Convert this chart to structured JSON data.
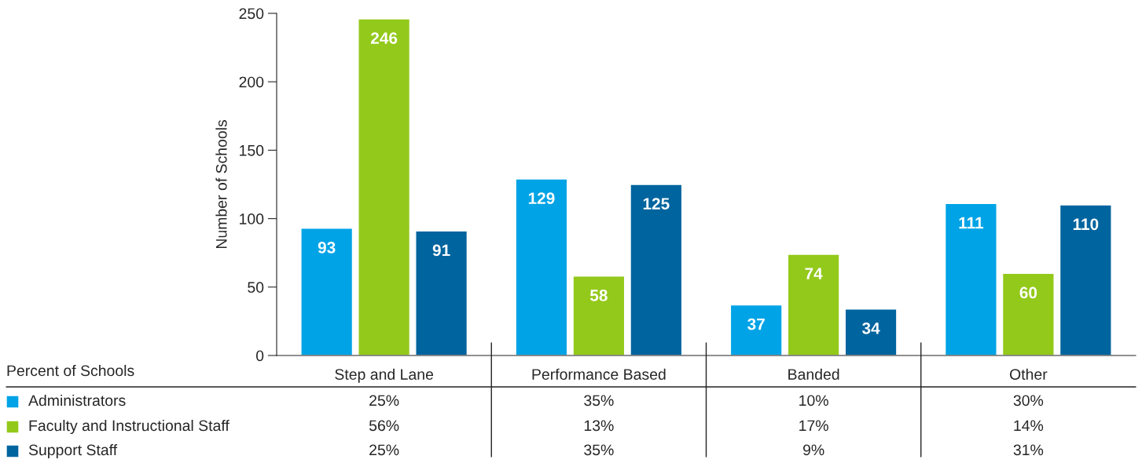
{
  "chart_data": {
    "type": "bar",
    "ylabel": "Number of Schools",
    "categories": [
      "Step and Lane",
      "Performance Based",
      "Banded",
      "Other"
    ],
    "series": [
      {
        "name": "Administrators",
        "color": "#00a3e6",
        "values": [
          93,
          129,
          37,
          111
        ]
      },
      {
        "name": "Faculty and Instructional Staff",
        "color": "#93c91a",
        "values": [
          246,
          58,
          74,
          60
        ]
      },
      {
        "name": "Support Staff",
        "color": "#00649e",
        "values": [
          91,
          125,
          34,
          110
        ]
      }
    ],
    "ylim": [
      0,
      250
    ],
    "yticks": [
      0,
      50,
      100,
      150,
      200,
      250
    ],
    "grid": false,
    "data_labels": true,
    "legend": "bottom left",
    "annotations": [
      "Percent of Schools",
      "25%",
      "35%",
      "10%",
      "30%",
      "56%",
      "13%",
      "17%",
      "14%",
      "25%",
      "35%",
      "9%",
      "31%"
    ]
  }
}
